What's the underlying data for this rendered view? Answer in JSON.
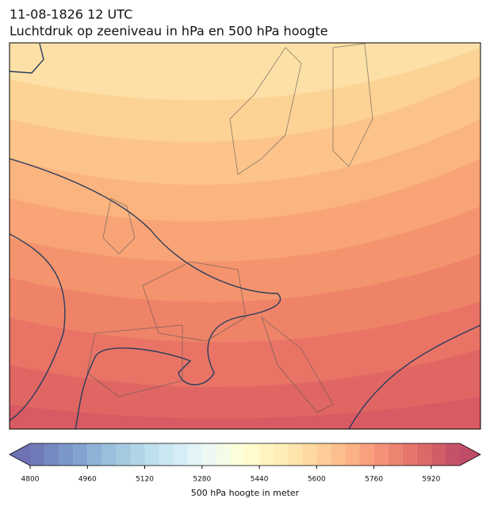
{
  "header": {
    "title_lines": [
      "11-08-1826 12 UTC",
      "Luchtdruk op zeeniveau in hPa en 500 hPa hoogte"
    ]
  },
  "colorbar": {
    "label": "500 hPa hoogte in meter",
    "colormap": "RdYlBu_r",
    "lim": [
      4800,
      6000
    ],
    "levels": [
      4800,
      4840,
      4880,
      4920,
      4960,
      5000,
      5040,
      5080,
      5120,
      5160,
      5200,
      5240,
      5280,
      5320,
      5360,
      5400,
      5440,
      5480,
      5520,
      5560,
      5600,
      5640,
      5680,
      5720,
      5760,
      5800,
      5840,
      5880,
      5920,
      5960,
      6000
    ],
    "ticks": [
      4800,
      4960,
      5120,
      5280,
      5440,
      5600,
      5760,
      5920
    ]
  }
}
